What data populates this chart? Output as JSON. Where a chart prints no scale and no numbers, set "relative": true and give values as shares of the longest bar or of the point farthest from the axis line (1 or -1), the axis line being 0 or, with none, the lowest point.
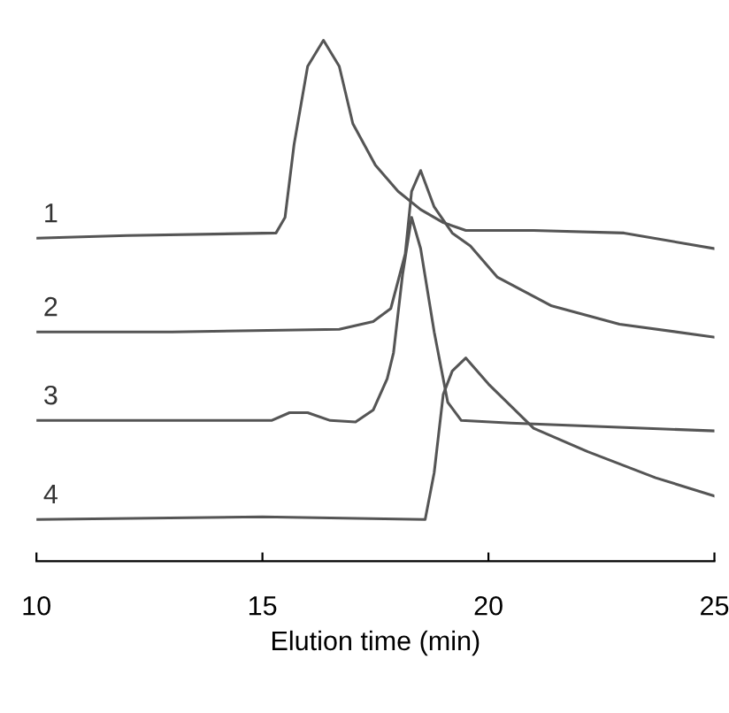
{
  "chart_data": {
    "type": "line",
    "relative": true,
    "xlabel": "Elution time (min)",
    "xlim": [
      10,
      25
    ],
    "xticks": [
      10,
      15,
      20,
      25
    ],
    "grid": false,
    "legend": false,
    "marker": "none",
    "line_style": "solid",
    "series": [
      {
        "name": "1",
        "color": "#555555",
        "x": [
          10,
          12,
          15.3,
          15.5,
          15.7,
          16.0,
          16.35,
          16.7,
          17.0,
          17.5,
          18.0,
          18.5,
          19.0,
          19.5,
          21,
          23,
          25
        ],
        "values": [
          0.62,
          0.625,
          0.63,
          0.66,
          0.8,
          0.95,
          1.0,
          0.95,
          0.84,
          0.76,
          0.71,
          0.675,
          0.65,
          0.635,
          0.635,
          0.63,
          0.6
        ]
      },
      {
        "name": "2",
        "color": "#555555",
        "x": [
          10,
          13,
          16.7,
          17.45,
          17.84,
          18.16,
          18.3,
          18.5,
          18.8,
          19.2,
          19.6,
          20.2,
          21.4,
          22.9,
          25
        ],
        "values": [
          0.44,
          0.44,
          0.445,
          0.46,
          0.485,
          0.59,
          0.71,
          0.75,
          0.68,
          0.63,
          0.605,
          0.545,
          0.49,
          0.455,
          0.43
        ]
      },
      {
        "name": "3",
        "color": "#555555",
        "x": [
          10,
          15.2,
          15.6,
          16.0,
          16.5,
          17.06,
          17.45,
          17.76,
          17.9,
          18.1,
          18.3,
          18.5,
          18.8,
          19.1,
          19.4,
          20.5,
          25
        ],
        "values": [
          0.27,
          0.27,
          0.285,
          0.285,
          0.27,
          0.267,
          0.29,
          0.35,
          0.4,
          0.55,
          0.66,
          0.6,
          0.44,
          0.305,
          0.27,
          0.265,
          0.25
        ]
      },
      {
        "name": "4",
        "color": "#555555",
        "x": [
          10,
          15,
          18.6,
          18.8,
          19.0,
          19.2,
          19.5,
          20.0,
          21.0,
          22.2,
          23.7,
          25
        ],
        "values": [
          0.08,
          0.085,
          0.08,
          0.17,
          0.32,
          0.365,
          0.39,
          0.34,
          0.255,
          0.21,
          0.16,
          0.125
        ]
      }
    ]
  }
}
